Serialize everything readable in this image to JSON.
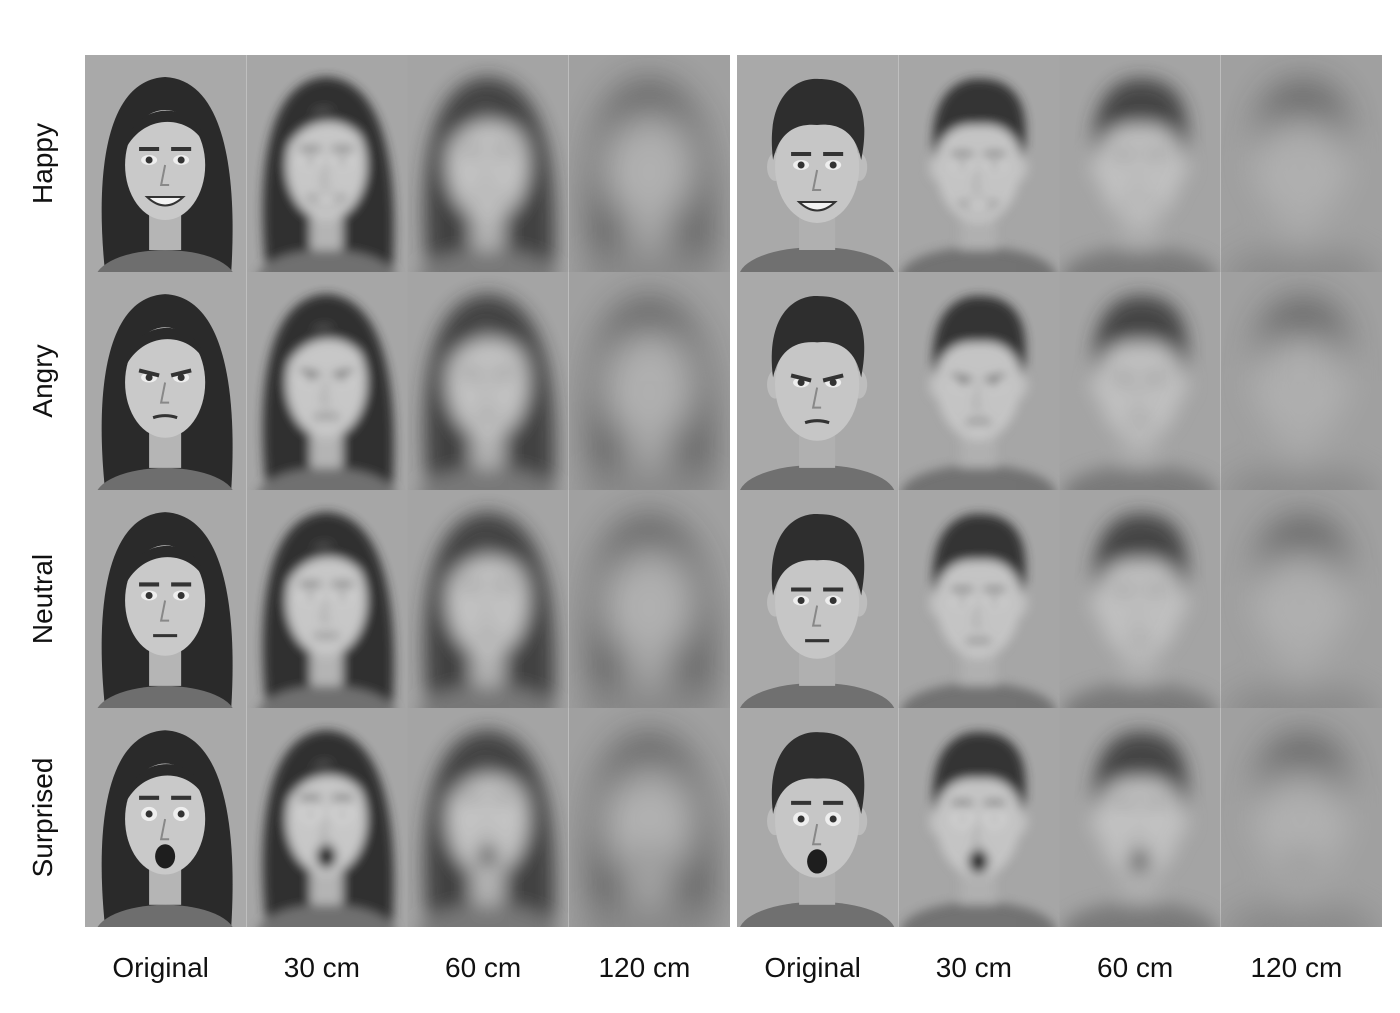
{
  "row_labels": [
    "Happy",
    "Angry",
    "Neutral",
    "Surprised"
  ],
  "column_labels": [
    "Original",
    "30 cm",
    "60 cm",
    "120 cm",
    "Original",
    "30 cm",
    "60 cm",
    "120 cm"
  ]
}
